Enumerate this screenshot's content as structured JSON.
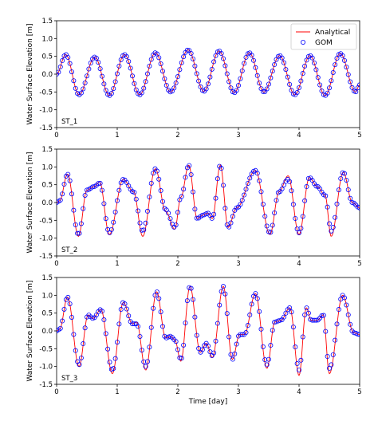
{
  "figure": {
    "legend": {
      "analytical": "Analytical",
      "gom": "GOM"
    },
    "colors": {
      "analytical": "#ff0000",
      "gom": "#0000ff"
    },
    "legend_placement": "top-right of first panel"
  },
  "chart_data": [
    {
      "type": "line",
      "panel_label": "ST_1",
      "ylabel": "Water Surface Elevation [m]",
      "xlabel": "",
      "xlim": [
        0,
        5
      ],
      "ylim": [
        -1.5,
        1.5
      ],
      "xticks": [
        "0",
        "1",
        "2",
        "3",
        "4",
        "5"
      ],
      "yticks": [
        "1.5",
        "1.0",
        "0.5",
        "0.0",
        "-0.5",
        "-1.0",
        "-1.5"
      ],
      "grid": false,
      "series": [
        {
          "name": "Analytical",
          "style": "line",
          "color": "#ff0000",
          "x": [
            0.0,
            0.15,
            0.37,
            0.63,
            0.87,
            1.12,
            1.37,
            1.63,
            1.88,
            2.17,
            2.43,
            2.68,
            2.93,
            3.18,
            3.42,
            3.68,
            3.93,
            4.18,
            4.43,
            4.68,
            4.93,
            5.0
          ],
          "y": [
            0.0,
            0.55,
            -0.58,
            0.48,
            -0.6,
            0.55,
            -0.58,
            0.6,
            -0.5,
            0.68,
            -0.48,
            0.65,
            -0.52,
            0.6,
            -0.5,
            0.52,
            -0.58,
            0.52,
            -0.6,
            0.58,
            -0.5,
            -0.3
          ]
        },
        {
          "name": "GOM",
          "style": "markers",
          "color": "#0000ff",
          "x": [
            0.0,
            0.15,
            0.37,
            0.63,
            0.87,
            1.12,
            1.37,
            1.63,
            1.88,
            2.17,
            2.43,
            2.68,
            2.93,
            3.18,
            3.42,
            3.68,
            3.93,
            4.18,
            4.43,
            4.68,
            4.93,
            5.0
          ],
          "y": [
            0.0,
            0.55,
            -0.58,
            0.48,
            -0.6,
            0.55,
            -0.58,
            0.6,
            -0.5,
            0.68,
            -0.48,
            0.65,
            -0.52,
            0.6,
            -0.5,
            0.52,
            -0.58,
            0.52,
            -0.6,
            0.58,
            -0.5,
            -0.3
          ]
        }
      ]
    },
    {
      "type": "line",
      "panel_label": "ST_2",
      "ylabel": "Water Surface Elevation [m]",
      "xlabel": "",
      "xlim": [
        0,
        5
      ],
      "ylim": [
        -1.5,
        1.5
      ],
      "xticks": [
        "0",
        "1",
        "2",
        "3",
        "4",
        "5"
      ],
      "yticks": [
        "1.5",
        "1.0",
        "0.5",
        "0.0",
        "-0.5",
        "-1.0",
        "-1.5"
      ],
      "grid": false,
      "series": [
        {
          "name": "Analytical",
          "style": "line",
          "color": "#ff0000",
          "x": [
            0.0,
            0.05,
            0.18,
            0.36,
            0.5,
            0.62,
            0.71,
            0.87,
            1.1,
            1.27,
            1.42,
            1.63,
            1.8,
            1.95,
            2.05,
            2.18,
            2.32,
            2.42,
            2.5,
            2.57,
            2.7,
            2.83,
            2.97,
            3.28,
            3.52,
            3.67,
            3.82,
            4.0,
            4.17,
            4.3,
            4.43,
            4.53,
            4.73,
            4.88,
            5.0
          ],
          "y": [
            0.0,
            0.05,
            0.8,
            -0.95,
            0.35,
            0.45,
            0.58,
            -0.9,
            0.65,
            0.3,
            -0.95,
            0.95,
            -0.25,
            -0.75,
            0.15,
            1.05,
            -0.45,
            -0.35,
            -0.3,
            -0.45,
            1.05,
            -0.7,
            -0.15,
            0.9,
            -0.9,
            0.3,
            0.75,
            -0.9,
            0.7,
            0.45,
            0.2,
            -0.95,
            0.85,
            0.0,
            -0.15
          ]
        },
        {
          "name": "GOM",
          "style": "markers",
          "color": "#0000ff",
          "x": [
            0.0,
            0.05,
            0.18,
            0.36,
            0.5,
            0.62,
            0.71,
            0.87,
            1.1,
            1.27,
            1.42,
            1.63,
            1.8,
            1.95,
            2.05,
            2.18,
            2.32,
            2.42,
            2.5,
            2.57,
            2.7,
            2.83,
            2.97,
            3.28,
            3.52,
            3.67,
            3.82,
            4.0,
            4.17,
            4.3,
            4.43,
            4.53,
            4.73,
            4.88,
            5.0
          ],
          "y": [
            0.0,
            0.05,
            0.8,
            -0.9,
            0.35,
            0.45,
            0.55,
            -0.85,
            0.65,
            0.3,
            -0.8,
            0.95,
            -0.2,
            -0.7,
            0.15,
            1.05,
            -0.45,
            -0.35,
            -0.3,
            -0.45,
            1.05,
            -0.7,
            -0.15,
            0.9,
            -0.85,
            0.3,
            0.65,
            -0.85,
            0.7,
            0.45,
            0.2,
            -0.8,
            0.85,
            0.0,
            -0.15
          ]
        }
      ]
    },
    {
      "type": "line",
      "panel_label": "ST_3",
      "ylabel": "Water Surface Elevation [m]",
      "xlabel": "Time [day]",
      "xlim": [
        0,
        5
      ],
      "ylim": [
        -1.5,
        1.5
      ],
      "xticks": [
        "0",
        "1",
        "2",
        "3",
        "4",
        "5"
      ],
      "yticks": [
        "1.5",
        "1.0",
        "0.5",
        "0.0",
        "-0.5",
        "-1.0",
        "-1.5"
      ],
      "grid": false,
      "series": [
        {
          "name": "Analytical",
          "style": "line",
          "color": "#ff0000",
          "x": [
            0.0,
            0.05,
            0.18,
            0.37,
            0.52,
            0.6,
            0.73,
            0.92,
            1.1,
            1.25,
            1.32,
            1.47,
            1.65,
            1.8,
            1.88,
            1.95,
            2.05,
            2.2,
            2.37,
            2.47,
            2.57,
            2.75,
            2.9,
            3.02,
            3.1,
            3.28,
            3.47,
            3.6,
            3.7,
            3.85,
            4.0,
            4.12,
            4.2,
            4.3,
            4.4,
            4.5,
            4.72,
            4.9,
            5.0
          ],
          "y": [
            0.0,
            0.05,
            0.95,
            -1.0,
            0.45,
            0.35,
            0.6,
            -1.2,
            0.8,
            0.2,
            0.25,
            -1.1,
            1.1,
            -0.2,
            -0.15,
            -0.25,
            -0.85,
            1.25,
            -0.6,
            -0.35,
            -0.75,
            1.25,
            -0.8,
            -0.1,
            -0.1,
            1.05,
            -1.05,
            0.25,
            0.3,
            0.65,
            -1.25,
            0.65,
            0.3,
            0.3,
            0.45,
            -1.2,
            1.0,
            -0.05,
            -0.1
          ]
        },
        {
          "name": "GOM",
          "style": "markers",
          "color": "#0000ff",
          "x": [
            0.0,
            0.05,
            0.18,
            0.37,
            0.52,
            0.6,
            0.73,
            0.92,
            1.1,
            1.25,
            1.32,
            1.47,
            1.65,
            1.8,
            1.88,
            1.95,
            2.05,
            2.2,
            2.37,
            2.47,
            2.57,
            2.75,
            2.9,
            3.02,
            3.1,
            3.28,
            3.47,
            3.6,
            3.7,
            3.85,
            4.0,
            4.12,
            4.2,
            4.3,
            4.4,
            4.5,
            4.72,
            4.9,
            5.0
          ],
          "y": [
            0.0,
            0.05,
            0.95,
            -0.95,
            0.45,
            0.35,
            0.6,
            -1.1,
            0.8,
            0.2,
            0.2,
            -1.0,
            1.1,
            -0.2,
            -0.15,
            -0.25,
            -0.8,
            1.25,
            -0.6,
            -0.35,
            -0.7,
            1.25,
            -0.8,
            -0.1,
            -0.1,
            1.05,
            -0.95,
            0.25,
            0.3,
            0.65,
            -1.1,
            0.65,
            0.3,
            0.3,
            0.45,
            -1.05,
            1.0,
            -0.05,
            -0.1
          ]
        }
      ]
    }
  ]
}
